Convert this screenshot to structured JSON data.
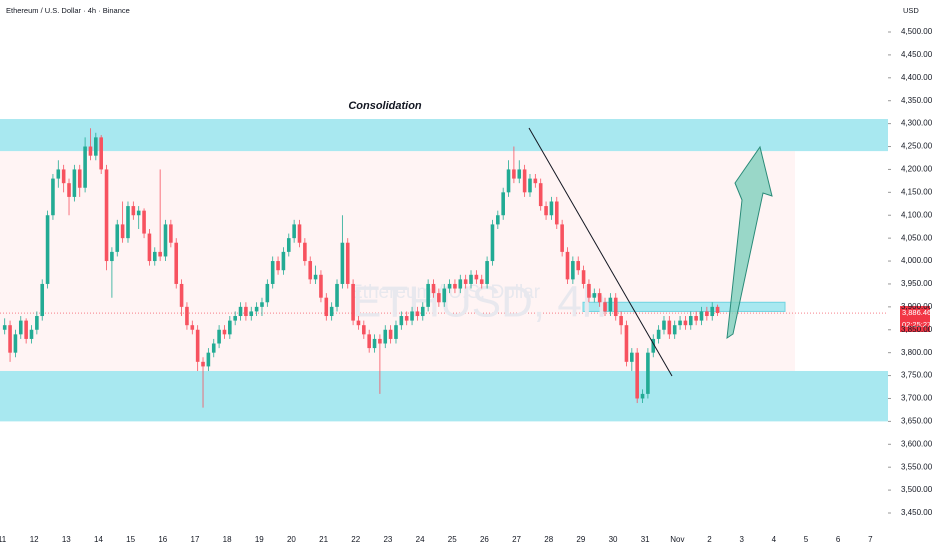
{
  "chart_data": {
    "type": "candlestick",
    "title": "Ethereum / U.S. Dollar · 4h · Binance",
    "axis_label": "USD",
    "watermark": "ETHUSD, 4h",
    "watermark_subtitle": "Ethereum / U.S. Dollar",
    "annotation": "Consolidation",
    "last_price": 3886.46,
    "last_price_label": "3,886.46",
    "countdown": "02:25:27",
    "colors": {
      "up": "#22ab94",
      "down": "#f7525f",
      "zone": "#a8e8f0",
      "range": "#fff4f4"
    },
    "zones": [
      [
        4240,
        4310
      ],
      [
        3650,
        3760
      ],
      [
        3890,
        3910
      ]
    ],
    "range_band": [
      3760,
      4240
    ],
    "xticks": [
      "11",
      "12",
      "13",
      "14",
      "15",
      "16",
      "17",
      "18",
      "19",
      "20",
      "21",
      "22",
      "23",
      "24",
      "25",
      "26",
      "27",
      "28",
      "29",
      "30",
      "31",
      "Nov",
      "2",
      "3",
      "4",
      "5",
      "6",
      "7"
    ],
    "ylim": [
      3450,
      4500
    ],
    "yticks": [
      {
        "value": 3450,
        "label": "3,450.00"
      },
      {
        "value": 3500,
        "label": "3,500.00"
      },
      {
        "value": 3550,
        "label": "3,550.00"
      },
      {
        "value": 3600,
        "label": "3,600.00"
      },
      {
        "value": 3650,
        "label": "3,650.00"
      },
      {
        "value": 3700,
        "label": "3,700.00"
      },
      {
        "value": 3750,
        "label": "3,750.00"
      },
      {
        "value": 3800,
        "label": "3,800.00"
      },
      {
        "value": 3850,
        "label": "3,850.00"
      },
      {
        "value": 3900,
        "label": "3,900.00"
      },
      {
        "value": 3950,
        "label": "3,950.00"
      },
      {
        "value": 4000,
        "label": "4,000.00"
      },
      {
        "value": 4050,
        "label": "4,050.00"
      },
      {
        "value": 4100,
        "label": "4,100.00"
      },
      {
        "value": 4150,
        "label": "4,150.00"
      },
      {
        "value": 4200,
        "label": "4,200.00"
      },
      {
        "value": 4250,
        "label": "4,250.00"
      },
      {
        "value": 4300,
        "label": "4,300.00"
      },
      {
        "value": 4350,
        "label": "4,350.00"
      },
      {
        "value": 4400,
        "label": "4,400.00"
      },
      {
        "value": 4450,
        "label": "4,450.00"
      },
      {
        "value": 4500,
        "label": "4,500.00"
      }
    ],
    "series": [
      {
        "name": "ETHUSD",
        "values": [
          [
            3850,
            3875,
            3840,
            3860
          ],
          [
            3860,
            3870,
            3780,
            3800
          ],
          [
            3800,
            3850,
            3790,
            3840
          ],
          [
            3840,
            3880,
            3830,
            3870
          ],
          [
            3870,
            3875,
            3820,
            3830
          ],
          [
            3830,
            3860,
            3820,
            3850
          ],
          [
            3850,
            3890,
            3840,
            3880
          ],
          [
            3880,
            3960,
            3870,
            3950
          ],
          [
            3950,
            4110,
            3940,
            4100
          ],
          [
            4100,
            4190,
            4090,
            4180
          ],
          [
            4180,
            4220,
            4160,
            4200
          ],
          [
            4200,
            4210,
            4150,
            4170
          ],
          [
            4170,
            4180,
            4100,
            4140
          ],
          [
            4140,
            4210,
            4130,
            4200
          ],
          [
            4200,
            4210,
            4140,
            4160
          ],
          [
            4160,
            4270,
            4150,
            4250
          ],
          [
            4250,
            4290,
            4220,
            4230
          ],
          [
            4230,
            4280,
            4220,
            4270
          ],
          [
            4270,
            4275,
            4190,
            4200
          ],
          [
            4200,
            4210,
            3980,
            4000
          ],
          [
            4000,
            4030,
            3920,
            4020
          ],
          [
            4020,
            4090,
            4010,
            4080
          ],
          [
            4080,
            4130,
            4040,
            4050
          ],
          [
            4050,
            4130,
            4040,
            4120
          ],
          [
            4120,
            4130,
            4090,
            4100
          ],
          [
            4100,
            4120,
            4070,
            4110
          ],
          [
            4110,
            4115,
            4050,
            4060
          ],
          [
            4060,
            4070,
            3990,
            4000
          ],
          [
            4000,
            4030,
            3990,
            4020
          ],
          [
            4020,
            4200,
            4000,
            4010
          ],
          [
            4010,
            4090,
            4000,
            4080
          ],
          [
            4080,
            4090,
            4030,
            4040
          ],
          [
            4040,
            4050,
            3940,
            3950
          ],
          [
            3950,
            3960,
            3880,
            3900
          ],
          [
            3900,
            3910,
            3850,
            3860
          ],
          [
            3860,
            3870,
            3840,
            3850
          ],
          [
            3850,
            3860,
            3760,
            3780
          ],
          [
            3780,
            3790,
            3680,
            3770
          ],
          [
            3770,
            3810,
            3760,
            3800
          ],
          [
            3800,
            3830,
            3790,
            3820
          ],
          [
            3820,
            3860,
            3810,
            3850
          ],
          [
            3850,
            3860,
            3830,
            3840
          ],
          [
            3840,
            3880,
            3830,
            3870
          ],
          [
            3870,
            3890,
            3860,
            3880
          ],
          [
            3880,
            3910,
            3870,
            3900
          ],
          [
            3900,
            3910,
            3870,
            3880
          ],
          [
            3880,
            3900,
            3870,
            3890
          ],
          [
            3890,
            3910,
            3880,
            3900
          ],
          [
            3900,
            3920,
            3880,
            3910
          ],
          [
            3910,
            3960,
            3900,
            3950
          ],
          [
            3950,
            4010,
            3940,
            4000
          ],
          [
            4000,
            4010,
            3970,
            3980
          ],
          [
            3980,
            4030,
            3970,
            4020
          ],
          [
            4020,
            4060,
            4010,
            4050
          ],
          [
            4050,
            4090,
            4040,
            4080
          ],
          [
            4080,
            4090,
            4030,
            4040
          ],
          [
            4040,
            4050,
            3990,
            4000
          ],
          [
            4000,
            4010,
            3950,
            3960
          ],
          [
            3960,
            3990,
            3950,
            3970
          ],
          [
            3970,
            3980,
            3910,
            3920
          ],
          [
            3920,
            3930,
            3870,
            3880
          ],
          [
            3880,
            3910,
            3870,
            3900
          ],
          [
            3900,
            3960,
            3890,
            3950
          ],
          [
            3950,
            4100,
            3940,
            4040
          ],
          [
            4040,
            4050,
            3940,
            3950
          ],
          [
            3950,
            3960,
            3860,
            3870
          ],
          [
            3870,
            3880,
            3850,
            3860
          ],
          [
            3860,
            3870,
            3830,
            3840
          ],
          [
            3840,
            3850,
            3800,
            3810
          ],
          [
            3810,
            3840,
            3800,
            3830
          ],
          [
            3830,
            3840,
            3710,
            3820
          ],
          [
            3820,
            3860,
            3810,
            3850
          ],
          [
            3850,
            3860,
            3820,
            3830
          ],
          [
            3830,
            3870,
            3820,
            3860
          ],
          [
            3860,
            3890,
            3850,
            3880
          ],
          [
            3880,
            3890,
            3860,
            3870
          ],
          [
            3870,
            3900,
            3860,
            3890
          ],
          [
            3890,
            3900,
            3870,
            3880
          ],
          [
            3880,
            3910,
            3870,
            3900
          ],
          [
            3900,
            3960,
            3890,
            3950
          ],
          [
            3950,
            3960,
            3920,
            3930
          ],
          [
            3930,
            3940,
            3900,
            3910
          ],
          [
            3910,
            3950,
            3900,
            3940
          ],
          [
            3940,
            3960,
            3930,
            3950
          ],
          [
            3950,
            3960,
            3930,
            3940
          ],
          [
            3940,
            3970,
            3930,
            3960
          ],
          [
            3960,
            3970,
            3940,
            3950
          ],
          [
            3950,
            3980,
            3940,
            3970
          ],
          [
            3970,
            3980,
            3950,
            3960
          ],
          [
            3960,
            3970,
            3940,
            3950
          ],
          [
            3950,
            4010,
            3940,
            4000
          ],
          [
            4000,
            4090,
            3990,
            4080
          ],
          [
            4080,
            4110,
            4070,
            4100
          ],
          [
            4100,
            4160,
            4090,
            4150
          ],
          [
            4150,
            4220,
            4140,
            4200
          ],
          [
            4200,
            4250,
            4170,
            4180
          ],
          [
            4180,
            4220,
            4170,
            4200
          ],
          [
            4200,
            4210,
            4140,
            4150
          ],
          [
            4150,
            4190,
            4140,
            4180
          ],
          [
            4180,
            4190,
            4160,
            4170
          ],
          [
            4170,
            4180,
            4110,
            4120
          ],
          [
            4120,
            4130,
            4090,
            4100
          ],
          [
            4100,
            4140,
            4090,
            4130
          ],
          [
            4130,
            4140,
            4070,
            4080
          ],
          [
            4080,
            4090,
            4010,
            4020
          ],
          [
            4020,
            4030,
            3950,
            3960
          ],
          [
            3960,
            4010,
            3950,
            4000
          ],
          [
            4000,
            4010,
            3970,
            3980
          ],
          [
            3980,
            3990,
            3940,
            3950
          ],
          [
            3950,
            3960,
            3910,
            3920
          ],
          [
            3920,
            3940,
            3910,
            3930
          ],
          [
            3930,
            3940,
            3900,
            3910
          ],
          [
            3910,
            3920,
            3880,
            3890
          ],
          [
            3890,
            3930,
            3880,
            3920
          ],
          [
            3920,
            3930,
            3870,
            3880
          ],
          [
            3880,
            3890,
            3840,
            3860
          ],
          [
            3860,
            3870,
            3770,
            3780
          ],
          [
            3780,
            3810,
            3760,
            3800
          ],
          [
            3800,
            3810,
            3690,
            3700
          ],
          [
            3700,
            3720,
            3690,
            3710
          ],
          [
            3710,
            3810,
            3700,
            3800
          ],
          [
            3800,
            3840,
            3790,
            3830
          ],
          [
            3830,
            3860,
            3820,
            3850
          ],
          [
            3850,
            3880,
            3840,
            3870
          ],
          [
            3870,
            3880,
            3830,
            3840
          ],
          [
            3840,
            3870,
            3830,
            3860
          ],
          [
            3860,
            3880,
            3850,
            3870
          ],
          [
            3870,
            3880,
            3850,
            3860
          ],
          [
            3860,
            3890,
            3850,
            3880
          ],
          [
            3880,
            3890,
            3860,
            3870
          ],
          [
            3870,
            3900,
            3860,
            3890
          ],
          [
            3890,
            3900,
            3870,
            3880
          ],
          [
            3880,
            3910,
            3870,
            3900
          ],
          [
            3900,
            3905,
            3880,
            3886.46
          ]
        ]
      }
    ]
  }
}
